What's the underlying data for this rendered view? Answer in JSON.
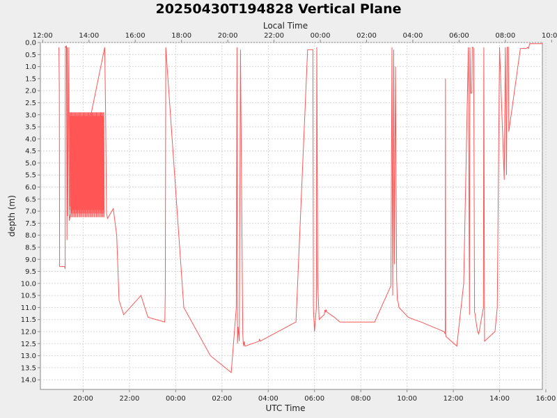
{
  "chart_data": {
    "type": "line",
    "title": "20250430T194828 Vertical Plane",
    "top_axis_label": "Local Time",
    "xlabel": "UTC Time",
    "ylabel": "depth (m)",
    "y_inverted": true,
    "ylim": [
      0,
      14.4
    ],
    "xlim_utc_hours": [
      18.15,
      39.85
    ],
    "grid": true,
    "line_color": "#ff5555",
    "bottom_ticks": [
      {
        "label": "20:00",
        "hour": 20
      },
      {
        "label": "22:00",
        "hour": 22
      },
      {
        "label": "00:00",
        "hour": 24
      },
      {
        "label": "02:00",
        "hour": 26
      },
      {
        "label": "04:00",
        "hour": 28
      },
      {
        "label": "06:00",
        "hour": 30
      },
      {
        "label": "08:00",
        "hour": 32
      },
      {
        "label": "10:00",
        "hour": 34
      },
      {
        "label": "12:00",
        "hour": 36
      },
      {
        "label": "14:00",
        "hour": 38
      },
      {
        "label": "16:00",
        "hour": 40
      }
    ],
    "top_ticks": [
      {
        "label": "12:00",
        "hour": 18.25
      },
      {
        "label": "14:00",
        "hour": 20.25
      },
      {
        "label": "16:00",
        "hour": 22.25
      },
      {
        "label": "18:00",
        "hour": 24.25
      },
      {
        "label": "20:00",
        "hour": 26.25
      },
      {
        "label": "22:00",
        "hour": 28.25
      },
      {
        "label": "00:00",
        "hour": 30.25
      },
      {
        "label": "02:00",
        "hour": 32.25
      },
      {
        "label": "04:00",
        "hour": 34.25
      },
      {
        "label": "06:00",
        "hour": 36.25
      },
      {
        "label": "08:00",
        "hour": 38.25
      },
      {
        "label": "10:00",
        "hour": 40.25
      }
    ],
    "y_ticks": [
      "0.0",
      "0.5",
      "1.0",
      "1.5",
      "2.0",
      "2.5",
      "3.0",
      "3.5",
      "4.0",
      "4.5",
      "5.0",
      "5.5",
      "6.0",
      "6.5",
      "7.0",
      "7.5",
      "8.0",
      "8.5",
      "9.0",
      "9.5",
      "10.0",
      "10.5",
      "11.0",
      "11.5",
      "12.0",
      "12.5",
      "13.0",
      "13.5",
      "14.0"
    ],
    "series": [
      {
        "x": [
          18.95,
          18.97,
          18.98,
          19.0,
          19.2,
          19.22,
          19.23,
          19.25,
          19.28,
          19.3,
          19.31,
          19.33,
          19.38,
          19.4,
          20.93,
          20.97,
          21.01,
          21.05,
          21.3,
          21.45,
          21.55,
          21.75,
          22.5,
          22.8,
          23.52,
          23.53,
          23.55,
          23.57,
          24.35,
          25.5,
          26.4,
          26.62,
          26.65,
          26.67,
          26.7,
          26.75,
          26.8,
          26.9,
          26.92,
          26.94,
          26.96,
          27.0,
          27.6,
          27.62,
          27.65,
          29.2,
          29.7,
          29.9,
          29.93,
          29.95,
          30.0,
          30.08,
          30.1,
          30.14,
          30.2,
          30.3,
          30.42,
          30.45,
          30.48,
          30.5,
          30.55,
          30.85,
          31.1,
          32.6,
          33.3,
          33.35,
          33.38,
          33.42,
          33.45,
          33.5,
          33.55,
          33.58,
          33.62,
          33.65,
          34.05,
          34.3,
          34.6,
          35.6,
          35.65,
          35.66,
          35.67,
          35.68,
          36.15,
          36.45,
          36.65,
          36.7,
          36.72,
          36.75,
          36.8,
          36.82,
          36.85,
          36.88,
          36.92,
          36.95,
          36.97,
          37.0,
          37.05,
          37.1,
          37.3,
          37.32,
          37.35,
          37.8,
          37.9,
          38.0,
          38.2,
          38.25,
          38.3,
          38.33,
          38.35,
          38.37,
          38.38,
          38.4,
          38.9,
          39.15,
          39.22,
          39.25,
          39.3,
          39.4,
          39.5,
          39.55,
          39.6,
          39.65,
          39.7,
          39.8,
          39.85
        ],
        "y": [
          0.2,
          2.0,
          9.3,
          9.3,
          9.3,
          9.4,
          0.15,
          0.2,
          0.15,
          8.2,
          0.2,
          7.2,
          0.2,
          7.4,
          0.2,
          3.0,
          7.1,
          7.3,
          6.9,
          8.0,
          10.7,
          11.3,
          10.5,
          11.4,
          11.6,
          11.5,
          10.4,
          0.2,
          11.0,
          13.0,
          13.7,
          11.0,
          0.2,
          12.5,
          11.8,
          12.4,
          0.3,
          12.1,
          12.5,
          12.6,
          12.4,
          12.6,
          12.4,
          12.3,
          12.4,
          11.6,
          0.3,
          0.3,
          0.3,
          11.0,
          12.0,
          11.0,
          0.2,
          10.0,
          11.5,
          11.4,
          11.3,
          11.1,
          11.2,
          11.1,
          11.2,
          11.4,
          11.6,
          11.6,
          10.1,
          0.2,
          10.5,
          0.3,
          9.2,
          1.0,
          9.8,
          10.7,
          10.8,
          11.0,
          11.4,
          11.5,
          11.6,
          12.0,
          12.1,
          1.5,
          12.1,
          12.2,
          12.6,
          10.0,
          0.2,
          11.3,
          0.2,
          2.1,
          2.1,
          0.2,
          0.2,
          0.25,
          11.2,
          11.3,
          11.5,
          11.7,
          12.0,
          12.1,
          11.0,
          0.2,
          12.4,
          12.0,
          11.0,
          0.2,
          5.7,
          0.2,
          5.5,
          0.2,
          0.2,
          0.2,
          0.2,
          3.7,
          0.25,
          0.25,
          0.2,
          0.25,
          0.05,
          0.05,
          0.05,
          0.05,
          0.05,
          0.05,
          0.05,
          0.05,
          0.05
        ]
      }
    ]
  }
}
